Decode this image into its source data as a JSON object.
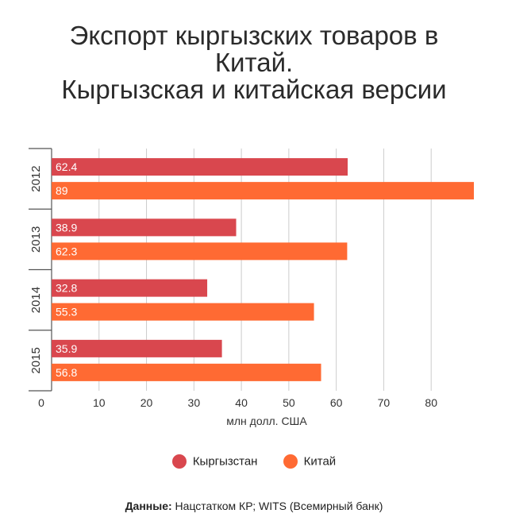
{
  "title_lines": [
    "Экспорт кыргызских товаров в",
    "Китай.",
    "Кыргызская и китайская версии"
  ],
  "legend": {
    "kg": {
      "label": "Кыргызстан"
    },
    "cn": {
      "label": "Китай"
    }
  },
  "source": {
    "label": "Данные:",
    "text": "Нацстатком КР; WITS (Всемирный банк)"
  },
  "colors": {
    "kg": "#d9474e",
    "cn": "#ff6a33",
    "grid": "#cccccc",
    "axis": "#555555"
  },
  "chart_data": {
    "type": "bar",
    "orientation": "horizontal",
    "categories": [
      "2012",
      "2013",
      "2014",
      "2015"
    ],
    "series": [
      {
        "name": "Кыргызстан",
        "values": [
          62.4,
          38.9,
          32.8,
          35.9
        ]
      },
      {
        "name": "Китай",
        "values": [
          89,
          62.3,
          55.3,
          56.8
        ]
      }
    ],
    "data_labels": [
      [
        "62.4",
        "38.9",
        "32.8",
        "35.9"
      ],
      [
        "89",
        "62.3",
        "55.3",
        "56.8"
      ]
    ],
    "xlim": [
      0,
      89
    ],
    "xticks": [
      0,
      10,
      20,
      30,
      40,
      50,
      60,
      70,
      80
    ],
    "xtick_labels": [
      "0",
      "10",
      "20",
      "30",
      "40",
      "50",
      "60",
      "70",
      "80"
    ],
    "xlabel": "млн долл. США",
    "grid": true,
    "legend_position": "bottom"
  }
}
